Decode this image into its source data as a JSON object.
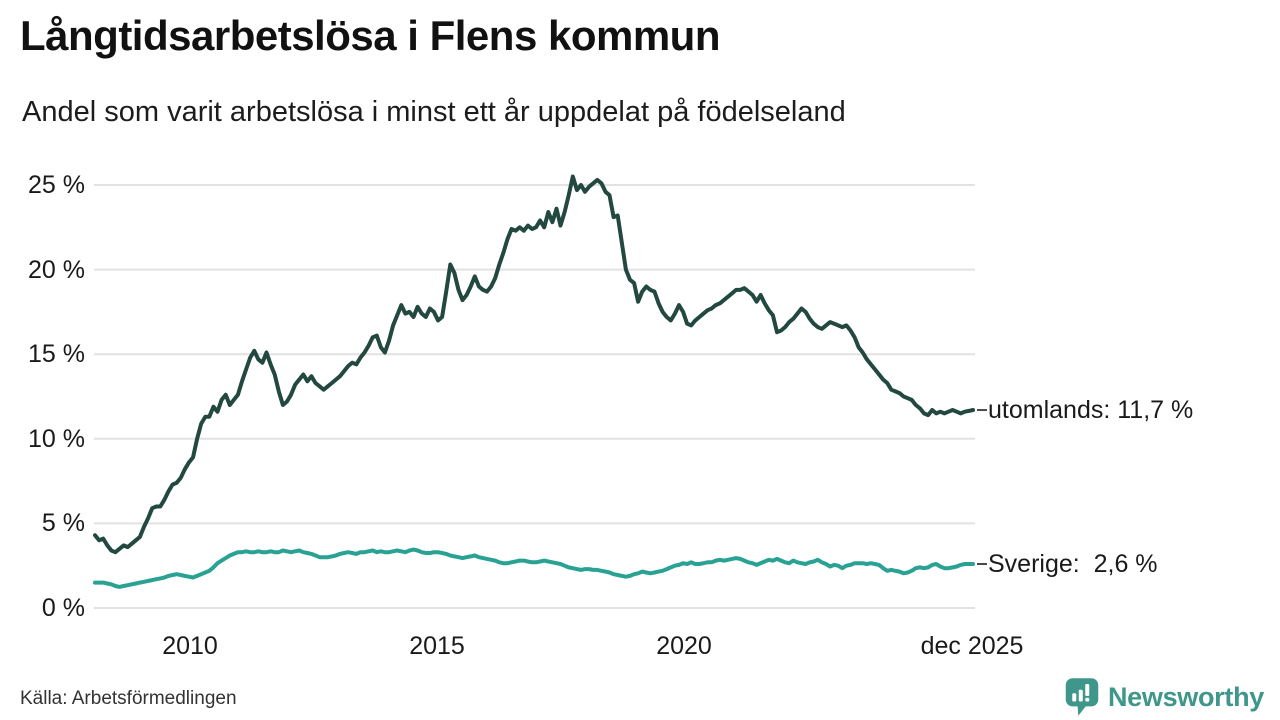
{
  "header": {
    "title": "Långtidsarbetslösa i Flens kommun",
    "subtitle": "Andel som varit arbetslösa i minst ett år uppdelat på födelseland"
  },
  "footer": {
    "source": "Källa: Arbetsförmedlingen",
    "brand": "Newsworthy"
  },
  "colors": {
    "utomlands_line": "#234840",
    "sverige_line": "#29a294",
    "gridline": "#e2e2e2",
    "leader_dash": "#4a4a4a",
    "brand_teal": "#3e978a",
    "text": "#1a1a1a"
  },
  "chart_data": {
    "type": "line",
    "title": "Långtidsarbetslösa i Flens kommun",
    "subtitle": "Andel som varit arbetslösa i minst ett år uppdelat på födelseland",
    "unit": "%",
    "frequency": "monthly",
    "x_start": "2008-01",
    "x_end": "2025-12",
    "x_ticks": [
      "2010",
      "2015",
      "2020",
      "dec 2025"
    ],
    "y_ticks": [
      "0 %",
      "5 %",
      "10 %",
      "15 %",
      "20 %",
      "25 %"
    ],
    "y_tick_values": [
      0,
      5,
      10,
      15,
      20,
      25
    ],
    "ylim": [
      0,
      26.5
    ],
    "grid": true,
    "legend_position": "right-of-line-ends",
    "series": [
      {
        "name": "utomlands",
        "label": "utomlands: 11,7 %",
        "last_value": "11,7 %",
        "color": "#234840",
        "values": [
          4.3,
          4.0,
          4.1,
          3.7,
          3.4,
          3.3,
          3.5,
          3.7,
          3.6,
          3.8,
          4.0,
          4.2,
          4.8,
          5.3,
          5.9,
          6.0,
          6.0,
          6.4,
          6.9,
          7.3,
          7.4,
          7.7,
          8.2,
          8.6,
          8.9,
          10.0,
          10.9,
          11.3,
          11.3,
          11.9,
          11.6,
          12.3,
          12.6,
          12.0,
          12.3,
          12.6,
          13.4,
          14.1,
          14.8,
          15.2,
          14.7,
          14.5,
          15.1,
          14.4,
          13.8,
          12.8,
          12.0,
          12.2,
          12.6,
          13.2,
          13.5,
          13.8,
          13.4,
          13.7,
          13.3,
          13.1,
          12.9,
          13.1,
          13.3,
          13.5,
          13.7,
          14.0,
          14.3,
          14.5,
          14.4,
          14.8,
          15.1,
          15.5,
          16.0,
          16.1,
          15.4,
          15.1,
          15.8,
          16.7,
          17.3,
          17.9,
          17.4,
          17.5,
          17.2,
          17.8,
          17.4,
          17.2,
          17.7,
          17.5,
          17.0,
          17.2,
          18.7,
          20.3,
          19.8,
          18.8,
          18.2,
          18.5,
          19.0,
          19.6,
          19.0,
          18.8,
          18.7,
          19.0,
          19.5,
          20.3,
          21.0,
          21.8,
          22.4,
          22.3,
          22.5,
          22.3,
          22.6,
          22.4,
          22.5,
          22.9,
          22.5,
          23.4,
          22.8,
          23.6,
          22.6,
          23.4,
          24.4,
          25.5,
          24.7,
          25.0,
          24.6,
          24.9,
          25.1,
          25.3,
          25.1,
          24.6,
          24.4,
          23.1,
          23.2,
          21.6,
          20.0,
          19.4,
          19.2,
          18.1,
          18.7,
          19.0,
          18.8,
          18.7,
          18.0,
          17.5,
          17.2,
          17.0,
          17.4,
          17.9,
          17.5,
          16.8,
          16.7,
          17.0,
          17.2,
          17.4,
          17.6,
          17.7,
          17.9,
          18.0,
          18.2,
          18.4,
          18.6,
          18.8,
          18.8,
          18.9,
          18.7,
          18.5,
          18.1,
          18.5,
          18.0,
          17.6,
          17.3,
          16.3,
          16.4,
          16.6,
          16.9,
          17.1,
          17.4,
          17.7,
          17.5,
          17.1,
          16.8,
          16.6,
          16.5,
          16.7,
          16.9,
          16.8,
          16.7,
          16.6,
          16.7,
          16.4,
          16.0,
          15.4,
          15.1,
          14.7,
          14.4,
          14.1,
          13.8,
          13.5,
          13.3,
          12.9,
          12.8,
          12.7,
          12.5,
          12.4,
          12.3,
          12.0,
          11.8,
          11.5,
          11.4,
          11.7,
          11.5,
          11.6,
          11.5,
          11.6,
          11.7,
          11.6,
          11.5,
          11.6,
          11.65,
          11.7
        ]
      },
      {
        "name": "Sverige",
        "label": "Sverige:  2,6 %",
        "last_value": "2,6 %",
        "color": "#29a294",
        "values": [
          1.5,
          1.5,
          1.5,
          1.45,
          1.4,
          1.3,
          1.25,
          1.3,
          1.35,
          1.4,
          1.45,
          1.5,
          1.55,
          1.6,
          1.65,
          1.7,
          1.75,
          1.8,
          1.9,
          1.95,
          2.0,
          1.95,
          1.9,
          1.85,
          1.8,
          1.9,
          2.0,
          2.1,
          2.2,
          2.4,
          2.65,
          2.8,
          2.95,
          3.1,
          3.2,
          3.3,
          3.3,
          3.35,
          3.3,
          3.3,
          3.35,
          3.3,
          3.3,
          3.35,
          3.3,
          3.3,
          3.4,
          3.35,
          3.3,
          3.35,
          3.4,
          3.3,
          3.25,
          3.2,
          3.1,
          3.0,
          3.0,
          3.0,
          3.05,
          3.1,
          3.2,
          3.25,
          3.3,
          3.25,
          3.2,
          3.3,
          3.3,
          3.35,
          3.4,
          3.3,
          3.35,
          3.3,
          3.3,
          3.35,
          3.4,
          3.35,
          3.3,
          3.4,
          3.45,
          3.4,
          3.3,
          3.25,
          3.25,
          3.3,
          3.3,
          3.25,
          3.2,
          3.1,
          3.05,
          3.0,
          2.95,
          3.0,
          3.05,
          3.1,
          3.0,
          2.95,
          2.9,
          2.85,
          2.8,
          2.7,
          2.65,
          2.65,
          2.7,
          2.75,
          2.8,
          2.8,
          2.75,
          2.7,
          2.7,
          2.75,
          2.8,
          2.75,
          2.7,
          2.65,
          2.6,
          2.5,
          2.4,
          2.35,
          2.3,
          2.25,
          2.3,
          2.3,
          2.25,
          2.25,
          2.2,
          2.15,
          2.1,
          2.0,
          1.95,
          1.9,
          1.85,
          1.9,
          2.0,
          2.05,
          2.15,
          2.1,
          2.05,
          2.1,
          2.15,
          2.2,
          2.3,
          2.4,
          2.5,
          2.55,
          2.65,
          2.6,
          2.7,
          2.6,
          2.6,
          2.65,
          2.7,
          2.7,
          2.8,
          2.85,
          2.8,
          2.85,
          2.9,
          2.95,
          2.9,
          2.8,
          2.7,
          2.65,
          2.55,
          2.65,
          2.75,
          2.85,
          2.8,
          2.9,
          2.8,
          2.7,
          2.65,
          2.8,
          2.7,
          2.65,
          2.6,
          2.7,
          2.75,
          2.85,
          2.7,
          2.6,
          2.45,
          2.55,
          2.5,
          2.35,
          2.5,
          2.55,
          2.65,
          2.65,
          2.65,
          2.6,
          2.65,
          2.6,
          2.55,
          2.35,
          2.2,
          2.25,
          2.2,
          2.15,
          2.05,
          2.1,
          2.2,
          2.35,
          2.4,
          2.35,
          2.4,
          2.55,
          2.6,
          2.45,
          2.35,
          2.35,
          2.4,
          2.45,
          2.55,
          2.6,
          2.6,
          2.6
        ]
      }
    ]
  }
}
